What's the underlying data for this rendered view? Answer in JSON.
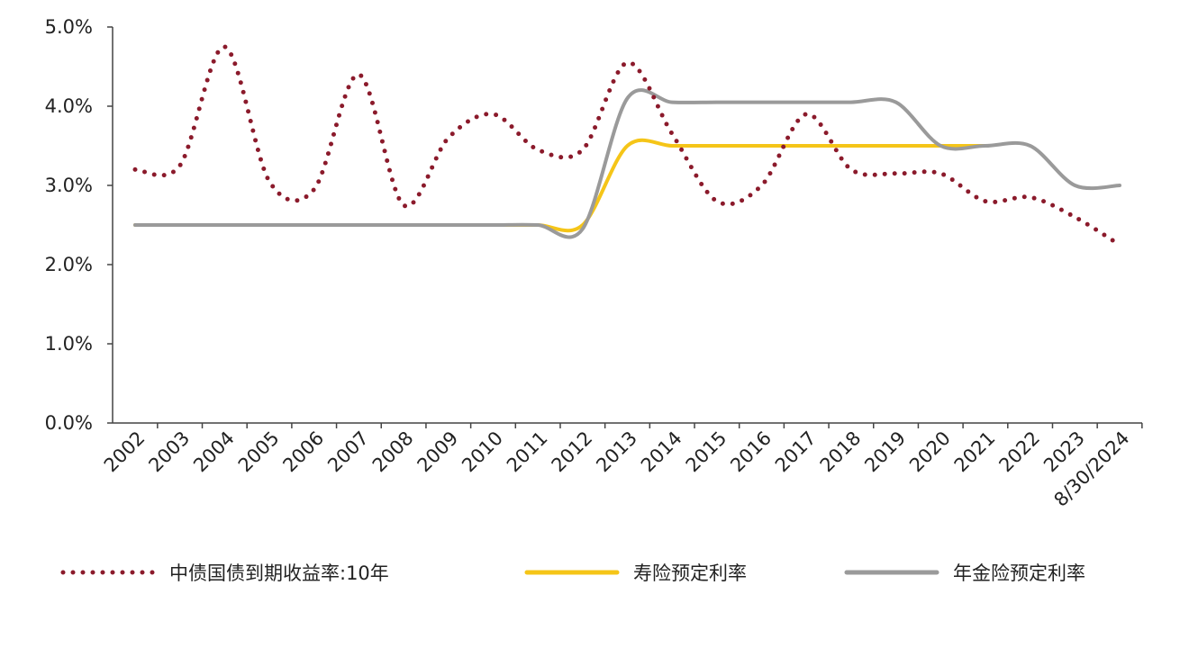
{
  "chart_data": {
    "type": "line",
    "categories": [
      "2002",
      "2003",
      "2004",
      "2005",
      "2006",
      "2007",
      "2008",
      "2009",
      "2010",
      "2011",
      "2012",
      "2013",
      "2014",
      "2015",
      "2016",
      "2017",
      "2018",
      "2019",
      "2020",
      "2021",
      "2022",
      "2023",
      "8/30/2024"
    ],
    "series": [
      {
        "name": "中债国债到期收益率:10年",
        "color": "#8b1a2b",
        "style": "dotted",
        "values": [
          3.2,
          3.25,
          4.75,
          3.05,
          2.95,
          4.4,
          2.75,
          3.6,
          3.9,
          3.45,
          3.45,
          4.55,
          3.65,
          2.8,
          3.0,
          3.9,
          3.2,
          3.15,
          3.15,
          2.8,
          2.85,
          2.6,
          2.25
        ]
      },
      {
        "name": "寿险预定利率",
        "color": "#f5c518",
        "style": "solid",
        "values": [
          2.5,
          2.5,
          2.5,
          2.5,
          2.5,
          2.5,
          2.5,
          2.5,
          2.5,
          2.5,
          2.5,
          3.5,
          3.5,
          3.5,
          3.5,
          3.5,
          3.5,
          3.5,
          3.5,
          3.5,
          null,
          null,
          null
        ]
      },
      {
        "name": "年金险预定利率",
        "color": "#9a9a9a",
        "style": "solid",
        "values": [
          2.5,
          2.5,
          2.5,
          2.5,
          2.5,
          2.5,
          2.5,
          2.5,
          2.5,
          2.5,
          2.45,
          4.1,
          4.05,
          4.05,
          4.05,
          4.05,
          4.05,
          4.05,
          3.5,
          3.5,
          3.5,
          3.0,
          3.0
        ]
      }
    ],
    "ylim": [
      0,
      5
    ],
    "yticks": [
      {
        "value": 0,
        "label": "0.0%"
      },
      {
        "value": 1,
        "label": "1.0%"
      },
      {
        "value": 2,
        "label": "2.0%"
      },
      {
        "value": 3,
        "label": "3.0%"
      },
      {
        "value": 4,
        "label": "4.0%"
      },
      {
        "value": 5,
        "label": "5.0%"
      }
    ],
    "grid": false,
    "legend": "bottom"
  }
}
